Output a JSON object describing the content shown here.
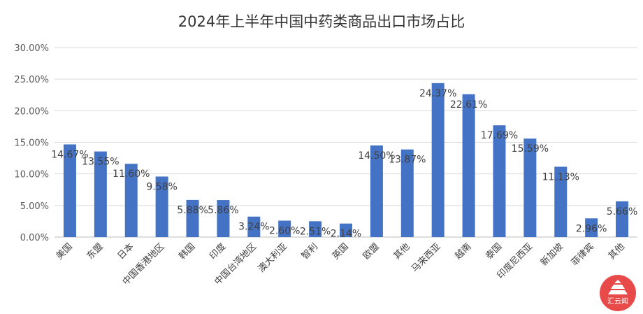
{
  "chart_data": {
    "type": "bar",
    "title": "2024年上半年中国中药类商品出口市场占比",
    "xlabel": "",
    "ylabel": "",
    "categories": [
      "美国",
      "东盟",
      "日本",
      "中国香港地区",
      "韩国",
      "印度",
      "中国台湾地区",
      "澳大利亚",
      "智利",
      "英国",
      "欧盟",
      "其他",
      "马来西亚",
      "越南",
      "泰国",
      "印度尼西亚",
      "新加坡",
      "菲律宾",
      "其他"
    ],
    "values": [
      14.67,
      13.55,
      11.6,
      9.58,
      5.88,
      5.86,
      3.24,
      2.6,
      2.51,
      2.14,
      14.5,
      13.87,
      24.37,
      22.61,
      17.69,
      15.59,
      11.13,
      2.96,
      5.66
    ],
    "data_labels": [
      "14.67%",
      "13.55%",
      "11.60%",
      "9.58%",
      "5.88%",
      "5.86%",
      "3.24%",
      "2.60%",
      "2.51%",
      "2.14%",
      "14.50%",
      "13.87%",
      "24.37%",
      "22.61%",
      "17.69%",
      "15.59%",
      "11.13%",
      "2.96%",
      "5.66%"
    ],
    "ylim": [
      0,
      30
    ],
    "yticks": [
      "0.00%",
      "5.00%",
      "10.00%",
      "15.00%",
      "20.00%",
      "25.00%",
      "30.00%"
    ],
    "grid": true,
    "legend": "none",
    "bar_color": "#4472c4"
  },
  "watermark": {
    "text": "汇云闻",
    "color": "#e84a4a"
  }
}
